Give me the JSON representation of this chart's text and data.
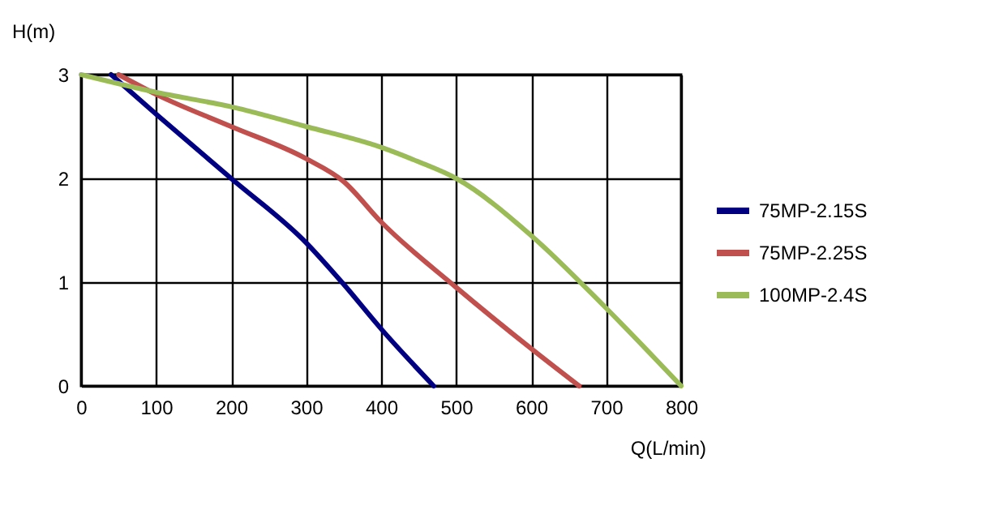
{
  "chart_data": {
    "type": "line",
    "xlabel": "Q(L/min)",
    "ylabel": "H(m)",
    "xlim": [
      0,
      800
    ],
    "xticks": [
      0,
      100,
      200,
      300,
      400,
      500,
      600,
      700,
      800
    ],
    "ylim": [
      0,
      3
    ],
    "yticks": [
      0,
      1,
      2,
      3
    ],
    "grid": true,
    "legend": "right",
    "marker": "none",
    "line_style": "solid",
    "series": [
      {
        "name": "75MP-2.15S",
        "color": "#000080",
        "x": [
          40,
          100,
          200,
          300,
          350,
          400,
          470
        ],
        "values": [
          3,
          2.62,
          2.0,
          1.38,
          0.98,
          0.55,
          0
        ]
      },
      {
        "name": "75MP-2.25S",
        "color": "#c0504d",
        "x": [
          50,
          100,
          200,
          300,
          350,
          400,
          500,
          600,
          664
        ],
        "values": [
          3,
          2.81,
          2.5,
          2.19,
          1.97,
          1.58,
          0.95,
          0.36,
          0
        ]
      },
      {
        "name": "100MP-2.4S",
        "color": "#9bbb59",
        "x": [
          0,
          100,
          200,
          300,
          400,
          450,
          500,
          600,
          700,
          800
        ],
        "values": [
          3,
          2.83,
          2.69,
          2.5,
          2.3,
          2.16,
          2.0,
          1.45,
          0.75,
          0
        ]
      }
    ]
  }
}
